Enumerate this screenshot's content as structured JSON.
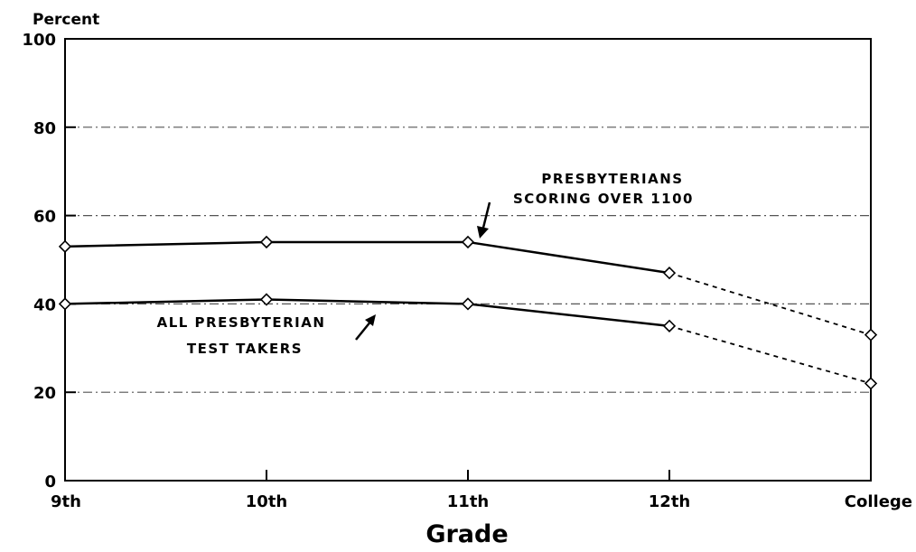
{
  "chart_data": {
    "type": "line",
    "ylabel": "Percent",
    "xlabel": "Grade",
    "categories": [
      "9th",
      "10th",
      "11th",
      "12th",
      "College"
    ],
    "ylim": [
      0,
      100
    ],
    "yticks": [
      0,
      20,
      40,
      60,
      80,
      100
    ],
    "grid": "dash-dot horizontal lines at 20, 40, 60, 80",
    "series": [
      {
        "name": "PRESBYTERIANS SCORING OVER 1100",
        "values": [
          53,
          54,
          54,
          47,
          33
        ],
        "solid_through_index": 3,
        "dashed_segment": "12th to College",
        "marker": "diamond",
        "color": "#000000"
      },
      {
        "name": "ALL PRESBYTERIAN TEST TAKERS",
        "values": [
          40,
          41,
          40,
          35,
          22
        ],
        "solid_through_index": 3,
        "dashed_segment": "12th to College",
        "marker": "diamond",
        "color": "#000000"
      }
    ],
    "annotations": [
      {
        "lines": [
          "PRESBYTERIANS",
          "SCORING OVER 1100"
        ],
        "points_to": "upper series at 11th"
      },
      {
        "lines": [
          "ALL PRESBYTERIAN",
          "TEST TAKERS"
        ],
        "points_to": "lower series between 10th and 11th"
      }
    ]
  }
}
